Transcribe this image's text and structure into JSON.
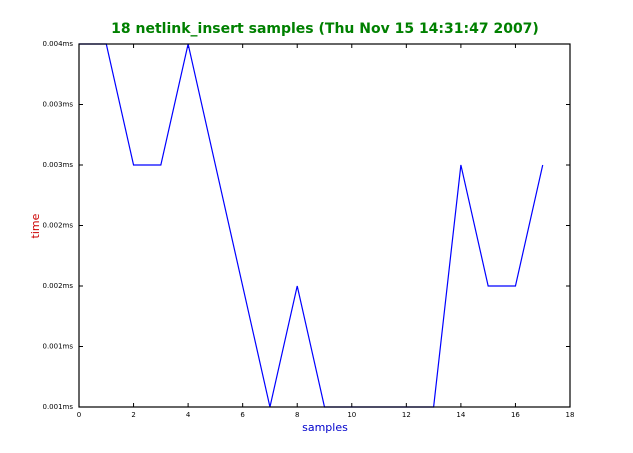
{
  "chart_data": {
    "type": "line",
    "title": "18 netlink_insert samples (Thu Nov 15 14:31:47 2007)",
    "title_color": "#008000",
    "x_label": "samples",
    "x_label_color": "#0000cc",
    "y_label": "time",
    "y_label_color": "#cc0000",
    "x": [
      0,
      1,
      2,
      3,
      4,
      5,
      6,
      7,
      8,
      9,
      10,
      11,
      12,
      13,
      14,
      15,
      16,
      17
    ],
    "series": [
      {
        "color": "#0000ff",
        "values": [
          0.004,
          0.004,
          0.003,
          0.003,
          0.004,
          0.003,
          0.002,
          0.001,
          0.002,
          0.001,
          0.001,
          0.001,
          0.001,
          0.001,
          0.003,
          0.002,
          0.002,
          0.003
        ]
      }
    ],
    "xlim": [
      0,
      18
    ],
    "xticks": [
      0,
      2,
      4,
      6,
      8,
      10,
      12,
      14,
      16,
      18
    ],
    "ylim": [
      0.001,
      0.004
    ],
    "yticks": [
      {
        "value": 0.001,
        "label": "0.001ms"
      },
      {
        "value": 0.0015,
        "label": "0.001ms"
      },
      {
        "value": 0.002,
        "label": "0.002ms"
      },
      {
        "value": 0.0025,
        "label": "0.002ms"
      },
      {
        "value": 0.003,
        "label": "0.003ms"
      },
      {
        "value": 0.0035,
        "label": "0.003ms"
      },
      {
        "value": 0.004,
        "label": "0.004ms"
      }
    ],
    "grid": false
  }
}
